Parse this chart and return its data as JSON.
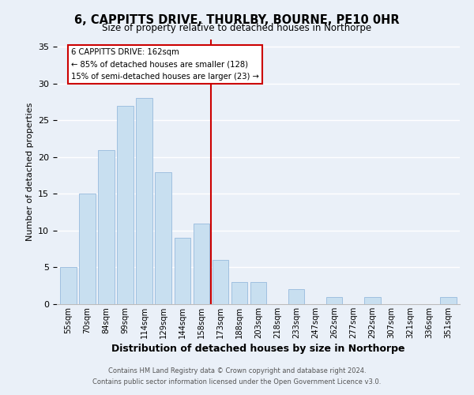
{
  "title": "6, CAPPITTS DRIVE, THURLBY, BOURNE, PE10 0HR",
  "subtitle": "Size of property relative to detached houses in Northorpe",
  "xlabel": "Distribution of detached houses by size in Northorpe",
  "ylabel": "Number of detached properties",
  "bar_labels": [
    "55sqm",
    "70sqm",
    "84sqm",
    "99sqm",
    "114sqm",
    "129sqm",
    "144sqm",
    "158sqm",
    "173sqm",
    "188sqm",
    "203sqm",
    "218sqm",
    "233sqm",
    "247sqm",
    "262sqm",
    "277sqm",
    "292sqm",
    "307sqm",
    "321sqm",
    "336sqm",
    "351sqm"
  ],
  "bar_values": [
    5,
    15,
    21,
    27,
    28,
    18,
    9,
    11,
    6,
    3,
    3,
    0,
    2,
    0,
    1,
    0,
    1,
    0,
    0,
    0,
    1
  ],
  "bar_color": "#c8dff0",
  "bar_edge_color": "#a0c0e0",
  "vline_x_idx": 7.5,
  "vline_color": "#cc0000",
  "annotation_title": "6 CAPPITTS DRIVE: 162sqm",
  "annotation_line1": "← 85% of detached houses are smaller (128)",
  "annotation_line2": "15% of semi-detached houses are larger (23) →",
  "annotation_box_color": "#ffffff",
  "annotation_box_edge": "#cc0000",
  "ylim": [
    0,
    36
  ],
  "yticks": [
    0,
    5,
    10,
    15,
    20,
    25,
    30,
    35
  ],
  "footer1": "Contains HM Land Registry data © Crown copyright and database right 2024.",
  "footer2": "Contains public sector information licensed under the Open Government Licence v3.0.",
  "bg_color": "#eaf0f8"
}
